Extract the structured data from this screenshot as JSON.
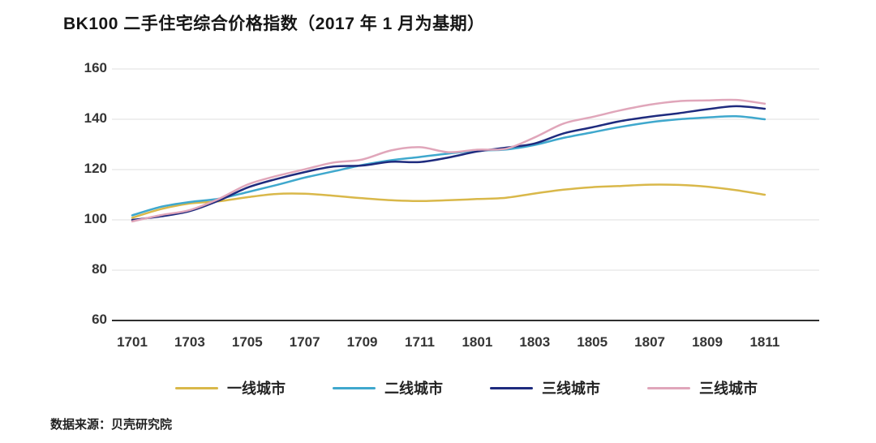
{
  "title": "BK100 二手住宅综合价格指数（2017 年 1 月为基期）",
  "source": "数据来源：贝壳研究院",
  "colors": {
    "grid": "#e5e5e5",
    "axis_line": "#2f2f2f",
    "tick_text": "#353535",
    "title_text": "#161616"
  },
  "chart_data": {
    "type": "line",
    "x": [
      "1701",
      "1702",
      "1703",
      "1704",
      "1705",
      "1706",
      "1707",
      "1708",
      "1709",
      "1710",
      "1711",
      "1712",
      "1801",
      "1802",
      "1803",
      "1804",
      "1805",
      "1806",
      "1807",
      "1808",
      "1809",
      "1810",
      "1811"
    ],
    "x_tick_labels": [
      "1701",
      "1703",
      "1705",
      "1707",
      "1709",
      "1711",
      "1801",
      "1803",
      "1805",
      "1807",
      "1809",
      "1811"
    ],
    "yticks": [
      60,
      80,
      100,
      120,
      140,
      160
    ],
    "ylim": [
      60,
      160
    ],
    "grid": "horizontal",
    "legend_position": "bottom",
    "series": [
      {
        "name": "一线城市",
        "color": "#d9b84a",
        "values": [
          100.8,
          104.3,
          106.5,
          107.4,
          109.0,
          110.3,
          110.4,
          109.6,
          108.6,
          107.8,
          107.5,
          107.8,
          108.3,
          108.8,
          110.5,
          112.0,
          113.0,
          113.5,
          114.0,
          113.9,
          113.2,
          111.8,
          110.0
        ]
      },
      {
        "name": "二线城市",
        "color": "#3fa8cd",
        "values": [
          101.8,
          105.2,
          107.1,
          108.4,
          111.0,
          113.8,
          116.8,
          119.3,
          121.8,
          123.7,
          125.0,
          126.4,
          127.5,
          128.0,
          129.8,
          132.6,
          134.8,
          137.0,
          138.8,
          140.0,
          140.7,
          141.2,
          140.0
        ]
      },
      {
        "name": "三线城市",
        "color": "#1e2b7e",
        "values": [
          100.0,
          101.4,
          103.5,
          107.6,
          112.8,
          116.2,
          119.0,
          121.2,
          121.6,
          123.1,
          123.0,
          124.8,
          127.2,
          128.7,
          130.4,
          134.4,
          136.8,
          139.3,
          141.0,
          142.4,
          144.0,
          145.2,
          144.2
        ]
      },
      {
        "name": "三线城市",
        "color": "#e0a6ba",
        "values": [
          99.4,
          101.9,
          103.9,
          108.3,
          114.0,
          117.4,
          120.1,
          122.8,
          124.0,
          127.6,
          128.9,
          126.9,
          127.9,
          128.3,
          132.8,
          138.3,
          140.9,
          143.6,
          145.8,
          147.2,
          147.5,
          147.7,
          146.2
        ]
      }
    ]
  }
}
